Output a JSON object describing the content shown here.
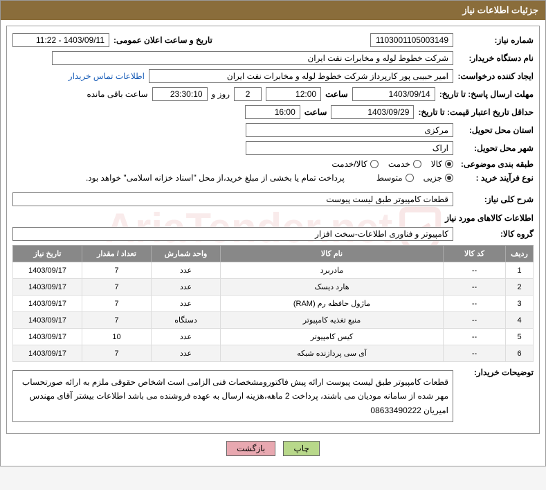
{
  "header": {
    "title": "جزئیات اطلاعات نیاز"
  },
  "fields": {
    "need_no_label": "شماره نیاز:",
    "need_no": "1103001105003149",
    "announce_label": "تاریخ و ساعت اعلان عمومی:",
    "announce": "1403/09/11 - 11:22",
    "buyer_org_label": "نام دستگاه خریدار:",
    "buyer_org": "شرکت خطوط لوله و مخابرات نفت ایران",
    "requester_label": "ایجاد کننده درخواست:",
    "requester": "امیر  حبیبی پور  کارپرداز شرکت خطوط لوله و مخابرات نفت ایران",
    "contact_link": "اطلاعات تماس خریدار",
    "reply_deadline_label": "مهلت ارسال پاسخ: تا تاریخ:",
    "reply_date": "1403/09/14",
    "hour_label": "ساعت",
    "reply_hour": "12:00",
    "days_remaining": "2",
    "days_text": "روز و",
    "time_remaining": "23:30:10",
    "remaining_text": "ساعت باقی مانده",
    "price_valid_label": "حداقل تاریخ اعتبار قیمت: تا تاریخ:",
    "price_date": "1403/09/29",
    "price_hour": "16:00",
    "province_label": "استان محل تحویل:",
    "province": "مرکزی",
    "city_label": "شهر محل تحویل:",
    "city": "اراک",
    "category_label": "طبقه بندی موضوعی:",
    "category_opts": {
      "goods": "کالا",
      "service": "خدمت",
      "both": "کالا/خدمت"
    },
    "purchase_type_label": "نوع فرآیند خرید :",
    "purchase_opts": {
      "small": "جزیی",
      "medium": "متوسط"
    },
    "purchase_selected": "small",
    "purchase_note": "پرداخت تمام یا بخشی از مبلغ خرید،از محل \"اسناد خزانه اسلامی\" خواهد بود.",
    "summary_label": "شرح کلی نیاز:",
    "summary": "قطعات کامپیوتر طبق لیست پیوست",
    "goods_section": "اطلاعات کالاهای مورد نیاز",
    "goods_group_label": "گروه کالا:",
    "goods_group": "کامپیوتر و فناوری اطلاعات-سخت افزار",
    "buyer_notes_label": "توضیحات خریدار:",
    "buyer_notes": "قطعات کامپیوتر طبق لیست پیوست ارائه پیش فاکتورومشخصات فنی الزامی است اشخاص حقوقی ملزم به ارائه صورتحساب مهر شده از سامانه مودیان می باشند، پرداخت 2 ماهه،هزینه ارسال به عهده فروشنده می باشد اطلاعات بیشتر آقای مهندس امیریان 08633490222"
  },
  "table": {
    "headers": {
      "idx": "ردیف",
      "code": "کد کالا",
      "name": "نام کالا",
      "unit": "واحد شمارش",
      "qty": "تعداد / مقدار",
      "date": "تاریخ نیاز"
    },
    "rows": [
      {
        "idx": "1",
        "code": "--",
        "name": "مادربرد",
        "unit": "عدد",
        "qty": "7",
        "date": "1403/09/17"
      },
      {
        "idx": "2",
        "code": "--",
        "name": "هارد دیسک",
        "unit": "عدد",
        "qty": "7",
        "date": "1403/09/17"
      },
      {
        "idx": "3",
        "code": "--",
        "name": "ماژول حافظه رم (RAM)",
        "unit": "عدد",
        "qty": "7",
        "date": "1403/09/17"
      },
      {
        "idx": "4",
        "code": "--",
        "name": "منبع تغذیه کامپیوتر",
        "unit": "دستگاه",
        "qty": "7",
        "date": "1403/09/17"
      },
      {
        "idx": "5",
        "code": "--",
        "name": "کیس کامپیوتر",
        "unit": "عدد",
        "qty": "10",
        "date": "1403/09/17"
      },
      {
        "idx": "6",
        "code": "--",
        "name": "آی سی پردازنده شبکه",
        "unit": "عدد",
        "qty": "7",
        "date": "1403/09/17"
      }
    ]
  },
  "buttons": {
    "print": "چاپ",
    "back": "بازگشت"
  },
  "colors": {
    "header_bg": "#8a6d3b",
    "header_fg": "#ffffff",
    "th_bg": "#888888",
    "btn_print_bg": "#b8d88a",
    "btn_back_bg": "#e8a8b0",
    "link": "#1a5eb8"
  }
}
